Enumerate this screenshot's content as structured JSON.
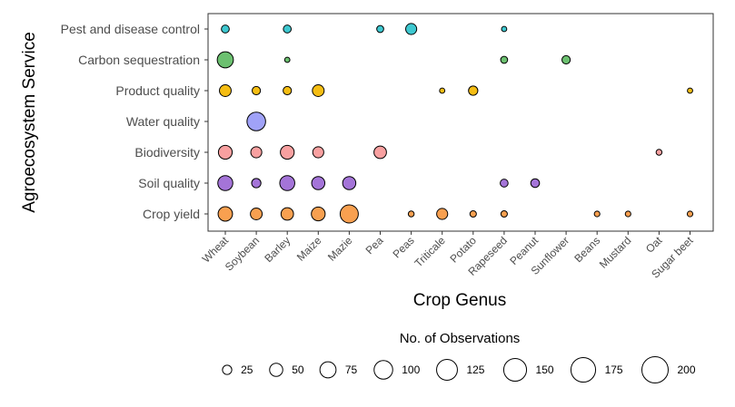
{
  "chart_data": {
    "type": "scatter",
    "subtype": "bubble",
    "xlabel": "Crop Genus",
    "ylabel": "Agroecosystem Service",
    "categories_x": [
      "Wheat",
      "Soybean",
      "Barley",
      "Maize",
      "Mazie",
      "Pea",
      "Peas",
      "Triticale",
      "Potato",
      "Rapeseed",
      "Peanut",
      "Sunflower",
      "Beans",
      "Mustard",
      "Oat",
      "Sugar beet"
    ],
    "categories_y": [
      "Pest and disease control",
      "Carbon sequestration",
      "Product quality",
      "Water quality",
      "Biodiversity",
      "Soil quality",
      "Crop yield"
    ],
    "colors": {
      "Pest and disease control": "#3ec8d0",
      "Carbon sequestration": "#6cc070",
      "Product quality": "#f5bd13",
      "Water quality": "#a0a2f8",
      "Biodiversity": "#f8a0a0",
      "Soil quality": "#a474d8",
      "Crop yield": "#f8a050"
    },
    "points": [
      {
        "service": "Pest and disease control",
        "crop": "Wheat",
        "n": 18
      },
      {
        "service": "Pest and disease control",
        "crop": "Barley",
        "n": 18
      },
      {
        "service": "Pest and disease control",
        "crop": "Pea",
        "n": 14
      },
      {
        "service": "Pest and disease control",
        "crop": "Peas",
        "n": 35
      },
      {
        "service": "Pest and disease control",
        "crop": "Rapeseed",
        "n": 8
      },
      {
        "service": "Carbon sequestration",
        "crop": "Wheat",
        "n": 75
      },
      {
        "service": "Carbon sequestration",
        "crop": "Barley",
        "n": 8
      },
      {
        "service": "Carbon sequestration",
        "crop": "Rapeseed",
        "n": 14
      },
      {
        "service": "Carbon sequestration",
        "crop": "Sunflower",
        "n": 20
      },
      {
        "service": "Product quality",
        "crop": "Wheat",
        "n": 40
      },
      {
        "service": "Product quality",
        "crop": "Soybean",
        "n": 20
      },
      {
        "service": "Product quality",
        "crop": "Barley",
        "n": 20
      },
      {
        "service": "Product quality",
        "crop": "Maize",
        "n": 40
      },
      {
        "service": "Product quality",
        "crop": "Triticale",
        "n": 8
      },
      {
        "service": "Product quality",
        "crop": "Potato",
        "n": 25
      },
      {
        "service": "Product quality",
        "crop": "Sugar beet",
        "n": 8
      },
      {
        "service": "Water quality",
        "crop": "Soybean",
        "n": 100
      },
      {
        "service": "Biodiversity",
        "crop": "Wheat",
        "n": 55
      },
      {
        "service": "Biodiversity",
        "crop": "Soybean",
        "n": 35
      },
      {
        "service": "Biodiversity",
        "crop": "Barley",
        "n": 55
      },
      {
        "service": "Biodiversity",
        "crop": "Maize",
        "n": 35
      },
      {
        "service": "Biodiversity",
        "crop": "Pea",
        "n": 45
      },
      {
        "service": "Biodiversity",
        "crop": "Oat",
        "n": 10
      },
      {
        "service": "Soil quality",
        "crop": "Wheat",
        "n": 65
      },
      {
        "service": "Soil quality",
        "crop": "Soybean",
        "n": 25
      },
      {
        "service": "Soil quality",
        "crop": "Barley",
        "n": 65
      },
      {
        "service": "Soil quality",
        "crop": "Maize",
        "n": 50
      },
      {
        "service": "Soil quality",
        "crop": "Mazie",
        "n": 50
      },
      {
        "service": "Soil quality",
        "crop": "Rapeseed",
        "n": 18
      },
      {
        "service": "Soil quality",
        "crop": "Peanut",
        "n": 22
      },
      {
        "service": "Crop yield",
        "crop": "Wheat",
        "n": 60
      },
      {
        "service": "Crop yield",
        "crop": "Soybean",
        "n": 40
      },
      {
        "service": "Crop yield",
        "crop": "Barley",
        "n": 45
      },
      {
        "service": "Crop yield",
        "crop": "Maize",
        "n": 55
      },
      {
        "service": "Crop yield",
        "crop": "Mazie",
        "n": 95
      },
      {
        "service": "Crop yield",
        "crop": "Peas",
        "n": 10
      },
      {
        "service": "Crop yield",
        "crop": "Triticale",
        "n": 35
      },
      {
        "service": "Crop yield",
        "crop": "Potato",
        "n": 12
      },
      {
        "service": "Crop yield",
        "crop": "Rapeseed",
        "n": 12
      },
      {
        "service": "Crop yield",
        "crop": "Beans",
        "n": 9
      },
      {
        "service": "Crop yield",
        "crop": "Mustard",
        "n": 9
      },
      {
        "service": "Crop yield",
        "crop": "Sugar beet",
        "n": 9
      }
    ],
    "legend": {
      "title": "No. of Observations",
      "values": [
        25,
        50,
        75,
        100,
        125,
        150,
        175,
        200
      ],
      "position": "bottom"
    },
    "grid": false
  }
}
